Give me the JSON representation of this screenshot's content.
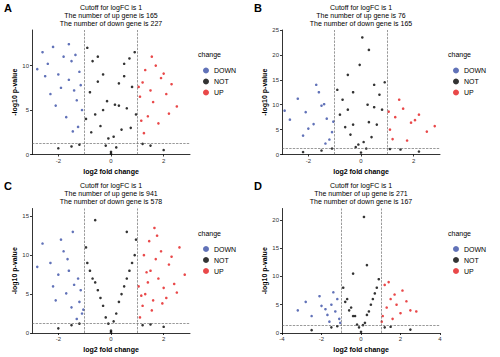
{
  "chart_data": [
    {
      "type": "scatter",
      "panel_label": "A",
      "title": "Cutoff for logFC is 1",
      "subtitle": [
        "The number of up gene is 165",
        "The number of down gene is 227"
      ],
      "x_label": "log2 fold change",
      "y_label": "-log10 p-value",
      "xlim": [
        -3,
        3
      ],
      "xticks": [
        -2,
        0,
        2
      ],
      "ylim": [
        0,
        14
      ],
      "yticks": [
        0,
        5,
        10
      ],
      "grid": false,
      "legend": "right",
      "legend_title": "change",
      "vlines": [
        -1,
        1
      ],
      "hline": 1.3,
      "series": [
        {
          "name": "DOWN",
          "color": "#3a4fa6",
          "x": [
            -2.6,
            -2.4,
            -2.2,
            -2.0,
            -1.8,
            -1.6,
            -1.5,
            -1.4,
            -1.3,
            -1.2,
            -1.1,
            -2.3,
            -1.9,
            -1.7,
            -2.5,
            -1.25,
            -1.45,
            -2.1,
            -1.6,
            -1.15,
            -1.35,
            -2.8
          ],
          "values": [
            11.5,
            10.2,
            12.1,
            9.0,
            11.0,
            8.4,
            10.5,
            7.2,
            6.1,
            9.3,
            5.0,
            6.8,
            7.5,
            4.2,
            8.8,
            3.1,
            2.6,
            5.5,
            12.4,
            7.8,
            11.2,
            9.6
          ]
        },
        {
          "name": "NOT",
          "color": "#000000",
          "x": [
            -0.9,
            -0.7,
            -0.5,
            -0.3,
            -0.1,
            0.1,
            0.3,
            0.5,
            0.7,
            0.9,
            -0.8,
            -0.6,
            -0.4,
            -0.2,
            0.0,
            0.2,
            0.4,
            0.6,
            0.8,
            -0.95,
            0.95,
            -0.5,
            0.5,
            -0.3,
            0.3,
            -1.5,
            1.5,
            -2.0,
            2.0,
            -1.2,
            1.2,
            -0.75,
            0.75,
            -0.15,
            0.15,
            0.0
          ],
          "values": [
            12.0,
            10.5,
            8.2,
            5.0,
            1.8,
            2.0,
            5.5,
            8.8,
            10.8,
            11.5,
            7.0,
            4.5,
            3.2,
            1.0,
            0.3,
            0.8,
            2.8,
            5.2,
            7.6,
            4.0,
            4.5,
            11.0,
            10.2,
            9.0,
            8.0,
            0.9,
            1.0,
            0.7,
            0.5,
            1.1,
            1.2,
            2.5,
            3.0,
            6.0,
            5.6,
            0.1
          ]
        },
        {
          "name": "UP",
          "color": "#e31a1c",
          "x": [
            1.1,
            1.2,
            1.3,
            1.5,
            1.7,
            1.9,
            2.1,
            2.3,
            2.5,
            1.4,
            1.6,
            1.8,
            2.0,
            1.25,
            1.15,
            2.2,
            1.55,
            1.05
          ],
          "values": [
            6.5,
            8.1,
            9.5,
            7.2,
            10.0,
            8.6,
            6.8,
            7.9,
            5.4,
            4.3,
            5.9,
            3.5,
            9.1,
            2.4,
            3.8,
            4.6,
            11.0,
            7.6
          ]
        }
      ]
    },
    {
      "type": "scatter",
      "panel_label": "B",
      "title": "Cutoff for logFC is 1",
      "subtitle": [
        "The number of up gene is 76",
        "The number of down gene is 165"
      ],
      "x_label": "log2 fold change",
      "y_label": "-log10 p-value",
      "xlim": [
        -3,
        3
      ],
      "xticks": [
        -2,
        0,
        2
      ],
      "ylim": [
        0,
        25
      ],
      "yticks": [
        0,
        5,
        10,
        15,
        20,
        25
      ],
      "grid": false,
      "legend": "right",
      "legend_title": "change",
      "vlines": [
        -1,
        1
      ],
      "hline": 1.3,
      "series": [
        {
          "name": "DOWN",
          "color": "#3a4fa6",
          "x": [
            -1.1,
            -1.3,
            -1.5,
            -1.8,
            -2.1,
            -2.4,
            -2.7,
            -1.2,
            -1.6,
            -2.0,
            -1.4,
            -2.9,
            -1.05,
            -1.7,
            -2.2,
            -1.35
          ],
          "values": [
            4.5,
            7.2,
            9.8,
            6.1,
            8.5,
            11.2,
            7.0,
            3.0,
            12.5,
            5.2,
            10.1,
            8.8,
            6.6,
            14.0,
            3.8,
            2.2
          ]
        },
        {
          "name": "NOT",
          "color": "#000000",
          "x": [
            -0.9,
            -0.7,
            -0.5,
            -0.3,
            -0.1,
            0.1,
            0.3,
            0.5,
            0.7,
            0.9,
            -0.8,
            -0.6,
            -0.4,
            -0.2,
            0.0,
            0.2,
            0.4,
            0.6,
            0.8,
            -0.5,
            0.5,
            -0.3,
            0.3,
            -1.5,
            1.5,
            -2.2,
            2.2,
            -1.1,
            1.1,
            0.05,
            -0.05,
            0.25
          ],
          "values": [
            13.0,
            11.0,
            9.0,
            6.0,
            2.0,
            2.5,
            6.5,
            9.5,
            12.0,
            14.5,
            8.0,
            5.5,
            4.0,
            1.5,
            0.4,
            1.2,
            3.5,
            6.0,
            9.0,
            16.0,
            14.0,
            12.5,
            21.0,
            0.8,
            1.0,
            0.5,
            0.6,
            1.2,
            1.1,
            23.5,
            18.0,
            10.0
          ]
        },
        {
          "name": "UP",
          "color": "#e31a1c",
          "x": [
            1.1,
            1.3,
            1.6,
            1.9,
            2.2,
            2.5,
            1.2,
            1.45,
            1.75,
            2.05,
            1.05,
            2.8
          ],
          "values": [
            5.0,
            7.5,
            9.2,
            6.4,
            8.0,
            4.6,
            3.1,
            11.0,
            2.8,
            6.9,
            8.6,
            5.7
          ]
        }
      ]
    },
    {
      "type": "scatter",
      "panel_label": "C",
      "title": "Cutoff for logFC is 1",
      "subtitle": [
        "The number of up gene is 941",
        "The number of down gene is 578"
      ],
      "x_label": "log2 fold change",
      "y_label": "-log10 p-value",
      "xlim": [
        -3,
        3
      ],
      "xticks": [
        -2,
        0,
        2
      ],
      "ylim": [
        0,
        16
      ],
      "yticks": [
        0,
        5,
        10,
        15
      ],
      "grid": false,
      "legend": "right",
      "legend_title": "change",
      "vlines": [
        -1,
        1
      ],
      "hline": 1.3,
      "series": [
        {
          "name": "DOWN",
          "color": "#3a4fa6",
          "x": [
            -1.1,
            -1.2,
            -1.4,
            -1.6,
            -1.8,
            -2.0,
            -2.3,
            -2.6,
            -1.3,
            -1.5,
            -1.7,
            -1.9,
            -2.2,
            -1.05,
            -1.25,
            -1.45,
            -2.8,
            -1.15,
            -1.65,
            -2.1
          ],
          "values": [
            2.5,
            4.0,
            6.2,
            8.0,
            10.5,
            7.5,
            9.0,
            11.5,
            1.8,
            3.3,
            5.1,
            12.0,
            6.0,
            3.0,
            7.0,
            13.0,
            8.5,
            5.5,
            9.5,
            4.2
          ]
        },
        {
          "name": "NOT",
          "color": "#000000",
          "x": [
            -0.9,
            -0.7,
            -0.5,
            -0.3,
            -0.1,
            0.1,
            0.3,
            0.5,
            0.7,
            0.9,
            -0.8,
            -0.6,
            -0.4,
            -0.2,
            0.0,
            0.2,
            0.4,
            0.6,
            0.8,
            -0.95,
            0.95,
            -1.5,
            1.5,
            -2.0,
            2.0,
            -1.2,
            1.2,
            -0.6,
            0.6,
            0.0
          ],
          "values": [
            9.0,
            7.0,
            5.5,
            3.5,
            1.2,
            1.5,
            4.0,
            6.0,
            8.0,
            10.0,
            8.0,
            6.5,
            4.5,
            2.0,
            0.3,
            2.5,
            5.0,
            7.0,
            9.0,
            11.0,
            12.0,
            1.0,
            1.1,
            0.6,
            0.8,
            1.2,
            1.0,
            14.5,
            13.0,
            0.1
          ]
        },
        {
          "name": "UP",
          "color": "#e31a1c",
          "x": [
            1.1,
            1.2,
            1.3,
            1.4,
            1.5,
            1.6,
            1.7,
            1.8,
            1.9,
            2.0,
            2.2,
            2.4,
            2.6,
            2.8,
            1.15,
            1.35,
            1.55,
            1.75,
            1.95,
            2.3,
            1.05,
            1.25,
            1.45,
            1.65,
            2.1,
            2.5
          ],
          "values": [
            2.0,
            3.5,
            5.0,
            6.5,
            8.0,
            4.2,
            9.5,
            7.0,
            10.5,
            5.8,
            8.8,
            6.3,
            11.0,
            7.5,
            4.8,
            7.8,
            2.9,
            12.5,
            3.8,
            9.8,
            6.0,
            10.0,
            11.8,
            13.5,
            4.5,
            5.2
          ]
        }
      ]
    },
    {
      "type": "scatter",
      "panel_label": "D",
      "title": "Cutoff for logFC is 1",
      "subtitle": [
        "The number of up gene is 271",
        "The number of down gene is 167"
      ],
      "x_label": "log2 fold change",
      "y_label": "-log10 p-value",
      "xlim": [
        -4,
        4
      ],
      "xticks": [
        -4,
        -2,
        0,
        2,
        4
      ],
      "ylim": [
        0,
        22
      ],
      "yticks": [
        0,
        5,
        10,
        15,
        20
      ],
      "grid": false,
      "legend": "right",
      "legend_title": "change",
      "vlines": [
        -1,
        1
      ],
      "hline": 1.3,
      "series": [
        {
          "name": "DOWN",
          "color": "#3a4fa6",
          "x": [
            -1.1,
            -1.3,
            -1.5,
            -1.8,
            -2.1,
            -2.5,
            -1.2,
            -1.6,
            -2.0,
            -1.4,
            -2.8,
            -1.05,
            -1.7,
            -3.2
          ],
          "values": [
            2.5,
            3.8,
            5.0,
            4.2,
            6.5,
            3.0,
            6.0,
            2.0,
            4.8,
            7.2,
            5.5,
            1.8,
            3.2,
            4.0
          ]
        },
        {
          "name": "NOT",
          "color": "#000000",
          "x": [
            -0.9,
            -0.7,
            -0.5,
            -0.3,
            -0.1,
            0.1,
            0.3,
            0.5,
            0.7,
            0.9,
            -0.8,
            -0.6,
            -0.4,
            -0.2,
            0.0,
            0.2,
            0.4,
            0.6,
            0.8,
            -1.5,
            1.5,
            -2.5,
            2.5,
            -1.2,
            1.2,
            0.3,
            0.15,
            -0.4
          ],
          "values": [
            8.0,
            6.0,
            4.5,
            3.0,
            1.0,
            1.4,
            3.2,
            5.0,
            7.0,
            9.5,
            5.5,
            4.0,
            3.0,
            1.5,
            0.2,
            1.8,
            3.8,
            6.0,
            8.0,
            1.0,
            1.1,
            0.5,
            0.6,
            1.2,
            1.0,
            12.0,
            20.5,
            10.5
          ]
        },
        {
          "name": "UP",
          "color": "#e31a1c",
          "x": [
            1.1,
            1.3,
            1.5,
            1.8,
            2.1,
            2.5,
            1.2,
            1.6,
            2.0,
            1.4,
            1.05,
            1.7,
            2.3,
            2.8
          ],
          "values": [
            3.0,
            4.5,
            6.0,
            5.0,
            7.5,
            4.0,
            8.5,
            2.5,
            3.5,
            9.0,
            2.0,
            6.8,
            5.6,
            3.8
          ]
        }
      ]
    }
  ]
}
